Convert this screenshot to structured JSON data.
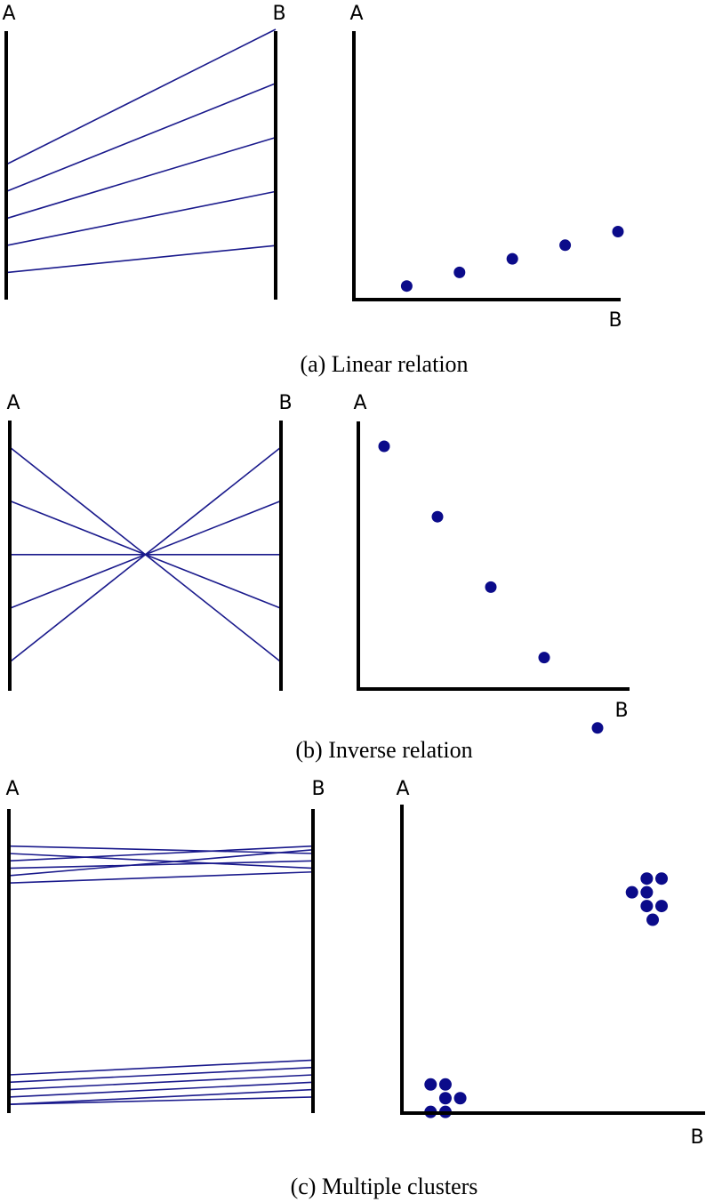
{
  "colors": {
    "line": "#1a1a8c",
    "dot": "#0b0b8a",
    "axis": "#000000"
  },
  "panels": [
    {
      "id": "a",
      "caption": "(a) Linear relation",
      "parallel": {
        "left_label": "A",
        "right_label": "B",
        "lines": [
          [
            0.5,
            1.0
          ],
          [
            0.4,
            0.8
          ],
          [
            0.3,
            0.6
          ],
          [
            0.2,
            0.4
          ],
          [
            0.1,
            0.2
          ]
        ]
      },
      "scatter": {
        "y_label": "A",
        "x_label": "B",
        "points": [
          [
            0.2,
            0.1
          ],
          [
            0.4,
            0.2
          ],
          [
            0.6,
            0.3
          ],
          [
            0.8,
            0.4
          ],
          [
            1.0,
            0.5
          ]
        ]
      }
    },
    {
      "id": "b",
      "caption": "(b) Inverse relation",
      "parallel": {
        "left_label": "A",
        "right_label": "B",
        "lines": [
          [
            1.0,
            0.2
          ],
          [
            0.8,
            0.4
          ],
          [
            0.6,
            0.6
          ],
          [
            0.4,
            0.8
          ],
          [
            0.2,
            1.0
          ]
        ]
      },
      "scatter": {
        "y_label": "A",
        "x_label": "B",
        "points": [
          [
            0.2,
            1.0
          ],
          [
            0.4,
            0.8
          ],
          [
            0.6,
            0.6
          ],
          [
            0.8,
            0.4
          ],
          [
            1.0,
            0.2
          ]
        ]
      }
    },
    {
      "id": "c",
      "caption": "(c) Multiple clusters",
      "parallel": {
        "left_label": "A",
        "right_label": "B",
        "lines": [
          [
            0.82,
            0.8
          ],
          [
            0.8,
            0.76
          ],
          [
            0.78,
            0.82
          ],
          [
            0.76,
            0.78
          ],
          [
            0.74,
            0.81
          ],
          [
            0.72,
            0.75
          ],
          [
            0.2,
            0.24
          ],
          [
            0.18,
            0.22
          ],
          [
            0.16,
            0.2
          ],
          [
            0.14,
            0.18
          ],
          [
            0.12,
            0.14
          ],
          [
            0.12,
            0.16
          ]
        ]
      },
      "scatter": {
        "y_label": "A",
        "x_label": "B",
        "points": [
          [
            0.81,
            0.76
          ],
          [
            0.86,
            0.8
          ],
          [
            0.91,
            0.8
          ],
          [
            0.86,
            0.76
          ],
          [
            0.86,
            0.72
          ],
          [
            0.91,
            0.72
          ],
          [
            0.88,
            0.68
          ],
          [
            0.13,
            0.2
          ],
          [
            0.18,
            0.2
          ],
          [
            0.18,
            0.16
          ],
          [
            0.23,
            0.16
          ],
          [
            0.13,
            0.12
          ],
          [
            0.18,
            0.12
          ]
        ]
      }
    }
  ]
}
